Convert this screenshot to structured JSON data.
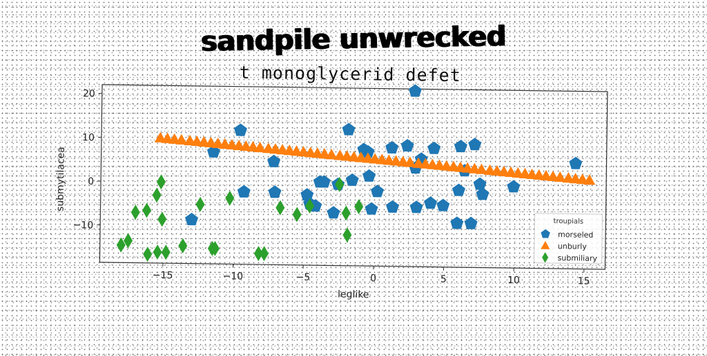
{
  "main_title": "sandpile unwrecked",
  "chart_data": {
    "type": "scatter",
    "title": "t monoglycerid defet",
    "xlabel": "leglike",
    "ylabel": "submytilacea",
    "xlim": [
      -19.5,
      16.5
    ],
    "ylim": [
      -18.5,
      22
    ],
    "xticks": [
      -15,
      -10,
      -5,
      0,
      5,
      10,
      15
    ],
    "yticks": [
      -10,
      0,
      10,
      20
    ],
    "grid": false,
    "legend": {
      "title": "troupials",
      "position": "lower-right"
    },
    "series": [
      {
        "name": "morseled",
        "marker": "pentagon",
        "color": "#1f77b4",
        "x": [
          -13,
          -11.5,
          -9.6,
          -9.3,
          -7.1,
          -7.2,
          -4.8,
          -4.6,
          -4.2,
          -3.9,
          -3.6,
          -2.9,
          -2.6,
          -1.9,
          -1.6,
          -0.8,
          -0.5,
          -0.4,
          -0.2,
          0.2,
          1.2,
          1.3,
          2.3,
          2.8,
          2.9,
          3.0,
          3.3,
          4.0,
          4.2,
          4.9,
          5.9,
          6.0,
          6.1,
          6.4,
          6.9,
          7.1,
          7.5,
          7.7,
          9.9,
          14.3
        ],
        "y": [
          -8.5,
          7,
          12,
          -2,
          -2,
          5,
          -2.5,
          -4.5,
          -5,
          0.5,
          0.5,
          -6.5,
          0,
          12.5,
          1,
          8,
          7.5,
          2,
          -5.5,
          -1.5,
          8.5,
          -5,
          9,
          21.5,
          4,
          -5,
          6,
          -4,
          8.5,
          -4.5,
          -8.5,
          -1,
          9,
          3.5,
          -8.5,
          9.5,
          0.5,
          -1.8,
          0,
          5.5
        ]
      },
      {
        "name": "unburly",
        "marker": "triangle",
        "color": "#ff7f0e",
        "x": [
          -15.3,
          -14.8,
          -14.3,
          -13.8,
          -13.2,
          -12.7,
          -12.2,
          -11.7,
          -11.2,
          -10.7,
          -10.2,
          -9.7,
          -9.2,
          -8.7,
          -8.2,
          -7.6,
          -7.1,
          -6.6,
          -6.1,
          -5.6,
          -5.1,
          -4.6,
          -4.1,
          -3.6,
          -3.1,
          -2.5,
          -2.0,
          -1.5,
          -1.0,
          -0.5,
          0.0,
          0.5,
          1.0,
          1.5,
          2.0,
          2.5,
          3.1,
          3.6,
          4.1,
          4.6,
          5.1,
          5.6,
          6.1,
          6.6,
          7.1,
          7.6,
          8.2,
          8.7,
          9.2,
          9.7,
          10.2,
          10.7,
          11.2,
          11.7,
          12.2,
          12.7,
          13.2,
          13.8,
          14.3,
          14.8,
          15.3
        ],
        "y": [
          10.0,
          9.87,
          9.73,
          9.59,
          9.44,
          9.3,
          9.17,
          9.03,
          8.89,
          8.76,
          8.62,
          8.49,
          8.35,
          8.22,
          8.08,
          7.92,
          7.79,
          7.65,
          7.52,
          7.38,
          7.24,
          7.11,
          6.97,
          6.84,
          6.7,
          6.54,
          6.41,
          6.27,
          6.14,
          6.0,
          5.86,
          5.73,
          5.59,
          5.46,
          5.32,
          5.19,
          5.02,
          4.89,
          4.75,
          4.62,
          4.48,
          4.35,
          4.21,
          4.08,
          3.94,
          3.81,
          3.64,
          3.51,
          3.37,
          3.24,
          3.1,
          2.97,
          2.83,
          2.7,
          2.56,
          2.42,
          2.29,
          2.13,
          1.99,
          1.86,
          1.72
        ]
      },
      {
        "name": "submiliary",
        "marker": "diamond",
        "color": "#2ca02c",
        "x": [
          -18,
          -17.5,
          -17,
          -16.2,
          -16.1,
          -15.5,
          -15.4,
          -15.2,
          -15.1,
          -14.8,
          -13.6,
          -12.4,
          -11.5,
          -11.3,
          -10.3,
          -8.2,
          -7.8,
          -6.7,
          -5.5,
          -4.6,
          -2.5,
          -2.0,
          -1.9,
          -1.1
        ],
        "y": [
          -14.5,
          -13.5,
          -7,
          -6.5,
          -16.5,
          -3,
          -16,
          0,
          -8.5,
          -16,
          -14.5,
          -5,
          -15,
          -15,
          -3.5,
          -16,
          -16,
          -5.5,
          -7,
          -5,
          0,
          -6.5,
          -11.5,
          -5
        ]
      }
    ]
  }
}
